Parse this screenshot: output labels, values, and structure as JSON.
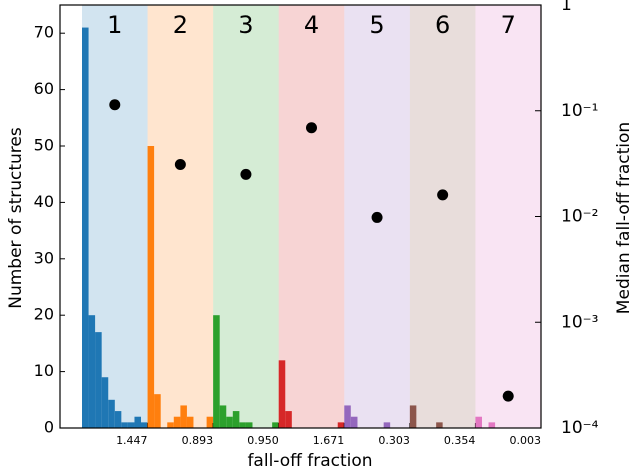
{
  "chart_data": {
    "type": "histogram",
    "xlabel": "fall-off fraction",
    "ylabel": "Number of structures",
    "y2label": "Median fall-off fraction",
    "ylim": [
      0,
      75
    ],
    "yticks": [
      0,
      10,
      20,
      30,
      40,
      50,
      60,
      70
    ],
    "y2lim": [
      0.0001,
      1
    ],
    "y2scale": "log",
    "y2ticks": [
      {
        "value": 0.0001,
        "label": "10⁻⁴"
      },
      {
        "value": 0.001,
        "label": "10⁻³"
      },
      {
        "value": 0.01,
        "label": "10⁻²"
      },
      {
        "value": 0.1,
        "label": "10⁻¹"
      },
      1
    ],
    "panels": [
      {
        "label": "1",
        "color": "#1f77b4",
        "xlim": [
          0,
          1.447
        ],
        "xticks": [
          1.447
        ],
        "bins": [
          0,
          0.145,
          0.289,
          0.434,
          0.579,
          0.724,
          0.868,
          1.013,
          1.158,
          1.302,
          1.447
        ],
        "counts": [
          71,
          20,
          17,
          9,
          5,
          3,
          1,
          1,
          2,
          1
        ]
      },
      {
        "label": "2",
        "color": "#ff7f0e",
        "xlim": [
          0,
          0.893
        ],
        "xticks": [
          0.893
        ],
        "bins": [
          0,
          0.089,
          0.179,
          0.268,
          0.357,
          0.447,
          0.536,
          0.625,
          0.714,
          0.804,
          0.893
        ],
        "counts": [
          50,
          6,
          0,
          1,
          2,
          4,
          2,
          0,
          0,
          2
        ]
      },
      {
        "label": "3",
        "color": "#2ca02c",
        "xlim": [
          0,
          0.95
        ],
        "xticks": [
          {
            "value": 0.95,
            "label": "0.950"
          }
        ],
        "bins": [
          0,
          0.095,
          0.19,
          0.285,
          0.38,
          0.475,
          0.57,
          0.665,
          0.76,
          0.855,
          0.95
        ],
        "counts": [
          20,
          4,
          2,
          3,
          1,
          1,
          0,
          0,
          0,
          1
        ]
      },
      {
        "label": "4",
        "color": "#d62728",
        "xlim": [
          0,
          1.671
        ],
        "xticks": [
          1.671
        ],
        "bins": [
          0,
          0.167,
          0.334,
          0.501,
          0.668,
          0.836,
          1.003,
          1.17,
          1.337,
          1.504,
          1.671
        ],
        "counts": [
          12,
          3,
          0,
          0,
          0,
          0,
          0,
          0,
          0,
          1
        ]
      },
      {
        "label": "5",
        "color": "#9467bd",
        "xlim": [
          0,
          0.303
        ],
        "xticks": [
          0.303
        ],
        "bins": [
          0,
          0.03,
          0.061,
          0.091,
          0.121,
          0.152,
          0.182,
          0.212,
          0.242,
          0.273,
          0.303
        ],
        "counts": [
          4,
          2,
          0,
          0,
          0,
          0,
          1,
          0,
          0,
          0
        ]
      },
      {
        "label": "6",
        "color": "#8c564b",
        "xlim": [
          0,
          0.354
        ],
        "xticks": [
          0.354
        ],
        "bins": [
          0,
          0.035,
          0.071,
          0.106,
          0.142,
          0.177,
          0.212,
          0.248,
          0.283,
          0.319,
          0.354
        ],
        "counts": [
          4,
          0,
          0,
          0,
          1,
          0,
          0,
          0,
          0,
          0
        ]
      },
      {
        "label": "7",
        "color": "#e377c2",
        "xlim": [
          0,
          0.003
        ],
        "xticks": [
          0.003
        ],
        "bins": [
          0,
          0.0003,
          0.0006,
          0.0009,
          0.0012,
          0.0015,
          0.0018,
          0.0021,
          0.0024,
          0.0027,
          0.003
        ],
        "counts": [
          2,
          0,
          1,
          0,
          0,
          0,
          0,
          0,
          0,
          0
        ]
      }
    ],
    "medians": {
      "color": "#000000",
      "axis": "y2",
      "values": [
        0.114,
        0.031,
        0.025,
        0.069,
        0.0098,
        0.016,
        0.0002
      ]
    }
  }
}
